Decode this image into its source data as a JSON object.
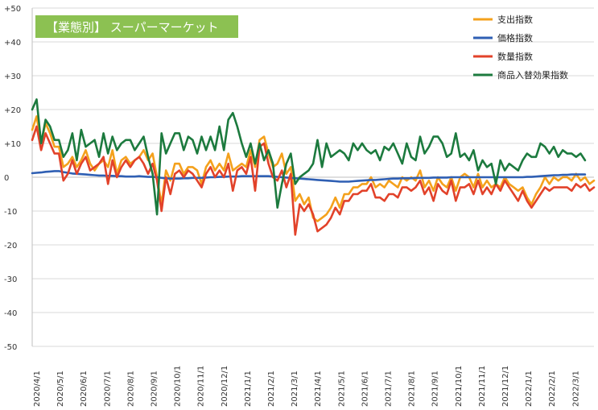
{
  "chart_data": {
    "type": "line",
    "title": "【業態別】 スーパーマーケット",
    "title_bg_color": "#8cc152",
    "ylim": [
      -50,
      50
    ],
    "yticks": [
      50,
      40,
      30,
      20,
      10,
      0,
      -10,
      -20,
      -30,
      -40,
      -50
    ],
    "ytick_labels": [
      "+50",
      "+40",
      "+30",
      "+20",
      "+10",
      "0",
      "-10",
      "-20",
      "-30",
      "-40",
      "-50"
    ],
    "x_tick_labels": [
      "2020/4/1",
      "2020/5/1",
      "2020/6/1",
      "2020/7/1",
      "2020/8/1",
      "2020/9/1",
      "2020/10/1",
      "2020/11/1",
      "2020/12/1",
      "2021/1/1",
      "2021/2/1",
      "2021/3/1",
      "2021/4/1",
      "2021/5/1",
      "2021/6/1",
      "2021/7/1",
      "2021/8/1",
      "2021/9/1",
      "2021/10/1",
      "2021/11/1",
      "2021/12/1",
      "2022/1/1",
      "2022/2/1",
      "2022/3/1"
    ],
    "grid": "horizontal",
    "legend_position": "top-right",
    "series": [
      {
        "name": "支出指数",
        "color": "#f4a11c",
        "values": [
          14,
          18,
          10,
          16,
          13,
          9,
          9,
          3,
          4,
          6,
          3,
          5,
          8,
          4,
          2,
          4,
          5,
          3,
          8,
          1,
          5,
          6,
          4,
          5,
          6,
          8,
          5,
          7,
          0,
          -8,
          2,
          -1,
          4,
          4,
          1,
          3,
          3,
          2,
          -2,
          3,
          5,
          2,
          4,
          2,
          7,
          2,
          3,
          4,
          3,
          8,
          3,
          11,
          12,
          7,
          3,
          4,
          7,
          1,
          3,
          -7,
          -5,
          -8,
          -6,
          -12,
          -13,
          -12,
          -11,
          -9,
          -6,
          -9,
          -5,
          -5,
          -3,
          -3,
          -2,
          -2,
          0,
          -3,
          -2,
          -3,
          -1,
          -2,
          -3,
          0,
          -1,
          0,
          -1,
          2,
          -3,
          -1,
          -4,
          0,
          -2,
          -3,
          0,
          -4,
          0,
          1,
          0,
          -3,
          1,
          -3,
          -1,
          -3,
          -2,
          -3,
          0,
          -2,
          -3,
          -4,
          -3,
          -6,
          -8,
          -5,
          -3,
          0,
          -2,
          0,
          -1,
          0,
          0,
          -1,
          1,
          -1,
          0,
          -2,
          -1
        ]
      },
      {
        "name": "価格指数",
        "color": "#2f5fb3",
        "values": [
          1.2,
          1.3,
          1.4,
          1.6,
          1.7,
          1.8,
          1.8,
          1.5,
          1.3,
          1.1,
          1.0,
          0.9,
          0.8,
          0.7,
          0.6,
          0.5,
          0.5,
          0.4,
          0.4,
          0.3,
          0.3,
          0.2,
          0.2,
          0.2,
          0.3,
          0.2,
          0.1,
          0.1,
          0.0,
          -0.2,
          -0.3,
          -0.4,
          -0.4,
          -0.4,
          -0.3,
          -0.3,
          -0.2,
          -0.2,
          -0.2,
          -0.1,
          0.0,
          0.0,
          0.1,
          0.1,
          0.2,
          0.2,
          0.2,
          0.3,
          0.3,
          0.3,
          0.3,
          0.3,
          0.3,
          0.3,
          0.2,
          0.1,
          0.0,
          -0.1,
          -0.2,
          -0.3,
          -0.4,
          -0.5,
          -0.6,
          -0.7,
          -0.8,
          -0.9,
          -1.0,
          -1.1,
          -1.2,
          -1.3,
          -1.3,
          -1.3,
          -1.2,
          -1.1,
          -1.0,
          -0.9,
          -0.8,
          -0.8,
          -0.7,
          -0.6,
          -0.5,
          -0.4,
          -0.4,
          -0.3,
          -0.3,
          -0.3,
          -0.2,
          -0.2,
          -0.2,
          -0.2,
          -0.1,
          -0.1,
          -0.1,
          -0.1,
          0.0,
          0.0,
          0.0,
          0.0,
          0.0,
          0.0,
          0.0,
          0.0,
          0.0,
          0.0,
          0.0,
          0.0,
          0.0,
          0.0,
          0.0,
          0.0,
          0.0,
          0.1,
          0.1,
          0.2,
          0.3,
          0.4,
          0.5,
          0.6,
          0.6,
          0.7,
          0.7,
          0.8,
          0.8,
          0.8,
          0.8
        ]
      },
      {
        "name": "数量指数",
        "color": "#e2422a",
        "values": [
          11,
          15,
          8,
          13,
          10,
          7,
          7,
          -1,
          1,
          5,
          1,
          4,
          6,
          2,
          3,
          4,
          6,
          -2,
          5,
          0,
          3,
          5,
          3,
          5,
          6,
          4,
          1,
          4,
          -1,
          -10,
          0,
          -5,
          1,
          2,
          0,
          2,
          1,
          -1,
          -3,
          1,
          3,
          0,
          2,
          0,
          4,
          -4,
          2,
          3,
          1,
          6,
          -4,
          9,
          10,
          4,
          0,
          -1,
          2,
          -3,
          1,
          -17,
          -8,
          -10,
          -8,
          -11,
          -16,
          -15,
          -14,
          -12,
          -9,
          -11,
          -7,
          -7,
          -5,
          -5,
          -4,
          -4,
          -2,
          -6,
          -6,
          -7,
          -5,
          -5,
          -6,
          -3,
          -3,
          -4,
          -3,
          -1,
          -5,
          -3,
          -7,
          -2,
          -4,
          -5,
          -1,
          -7,
          -3,
          -3,
          -2,
          -5,
          -1,
          -5,
          -3,
          -5,
          -2,
          -4,
          -1,
          -3,
          -5,
          -7,
          -4,
          -7,
          -9,
          -7,
          -5,
          -3,
          -4,
          -3,
          -3,
          -3,
          -3,
          -4,
          -2,
          -3,
          -2,
          -4,
          -3
        ]
      },
      {
        "name": "商品入替効果指数",
        "color": "#1c7a3e",
        "values": [
          20,
          23,
          10,
          17,
          15,
          11,
          11,
          6,
          8,
          13,
          5,
          14,
          9,
          10,
          11,
          6,
          13,
          7,
          12,
          8,
          10,
          11,
          11,
          8,
          10,
          12,
          6,
          1,
          -11,
          13,
          7,
          10,
          13,
          13,
          8,
          12,
          11,
          7,
          12,
          8,
          12,
          8,
          15,
          8,
          17,
          19,
          15,
          10,
          6,
          10,
          4,
          10,
          5,
          8,
          4,
          -9,
          -2,
          4,
          7,
          -2,
          0,
          1,
          2,
          4,
          11,
          3,
          10,
          6,
          7,
          8,
          7,
          5,
          10,
          8,
          10,
          8,
          7,
          8,
          5,
          9,
          8,
          10,
          7,
          4,
          10,
          6,
          5,
          12,
          7,
          9,
          12,
          12,
          10,
          6,
          7,
          13,
          6,
          7,
          5,
          8,
          2,
          5,
          3,
          4,
          -2,
          5,
          2,
          4,
          3,
          2,
          5,
          7,
          6,
          6,
          10,
          9,
          7,
          9,
          6,
          8,
          7,
          7,
          6,
          7,
          5
        ]
      }
    ]
  }
}
